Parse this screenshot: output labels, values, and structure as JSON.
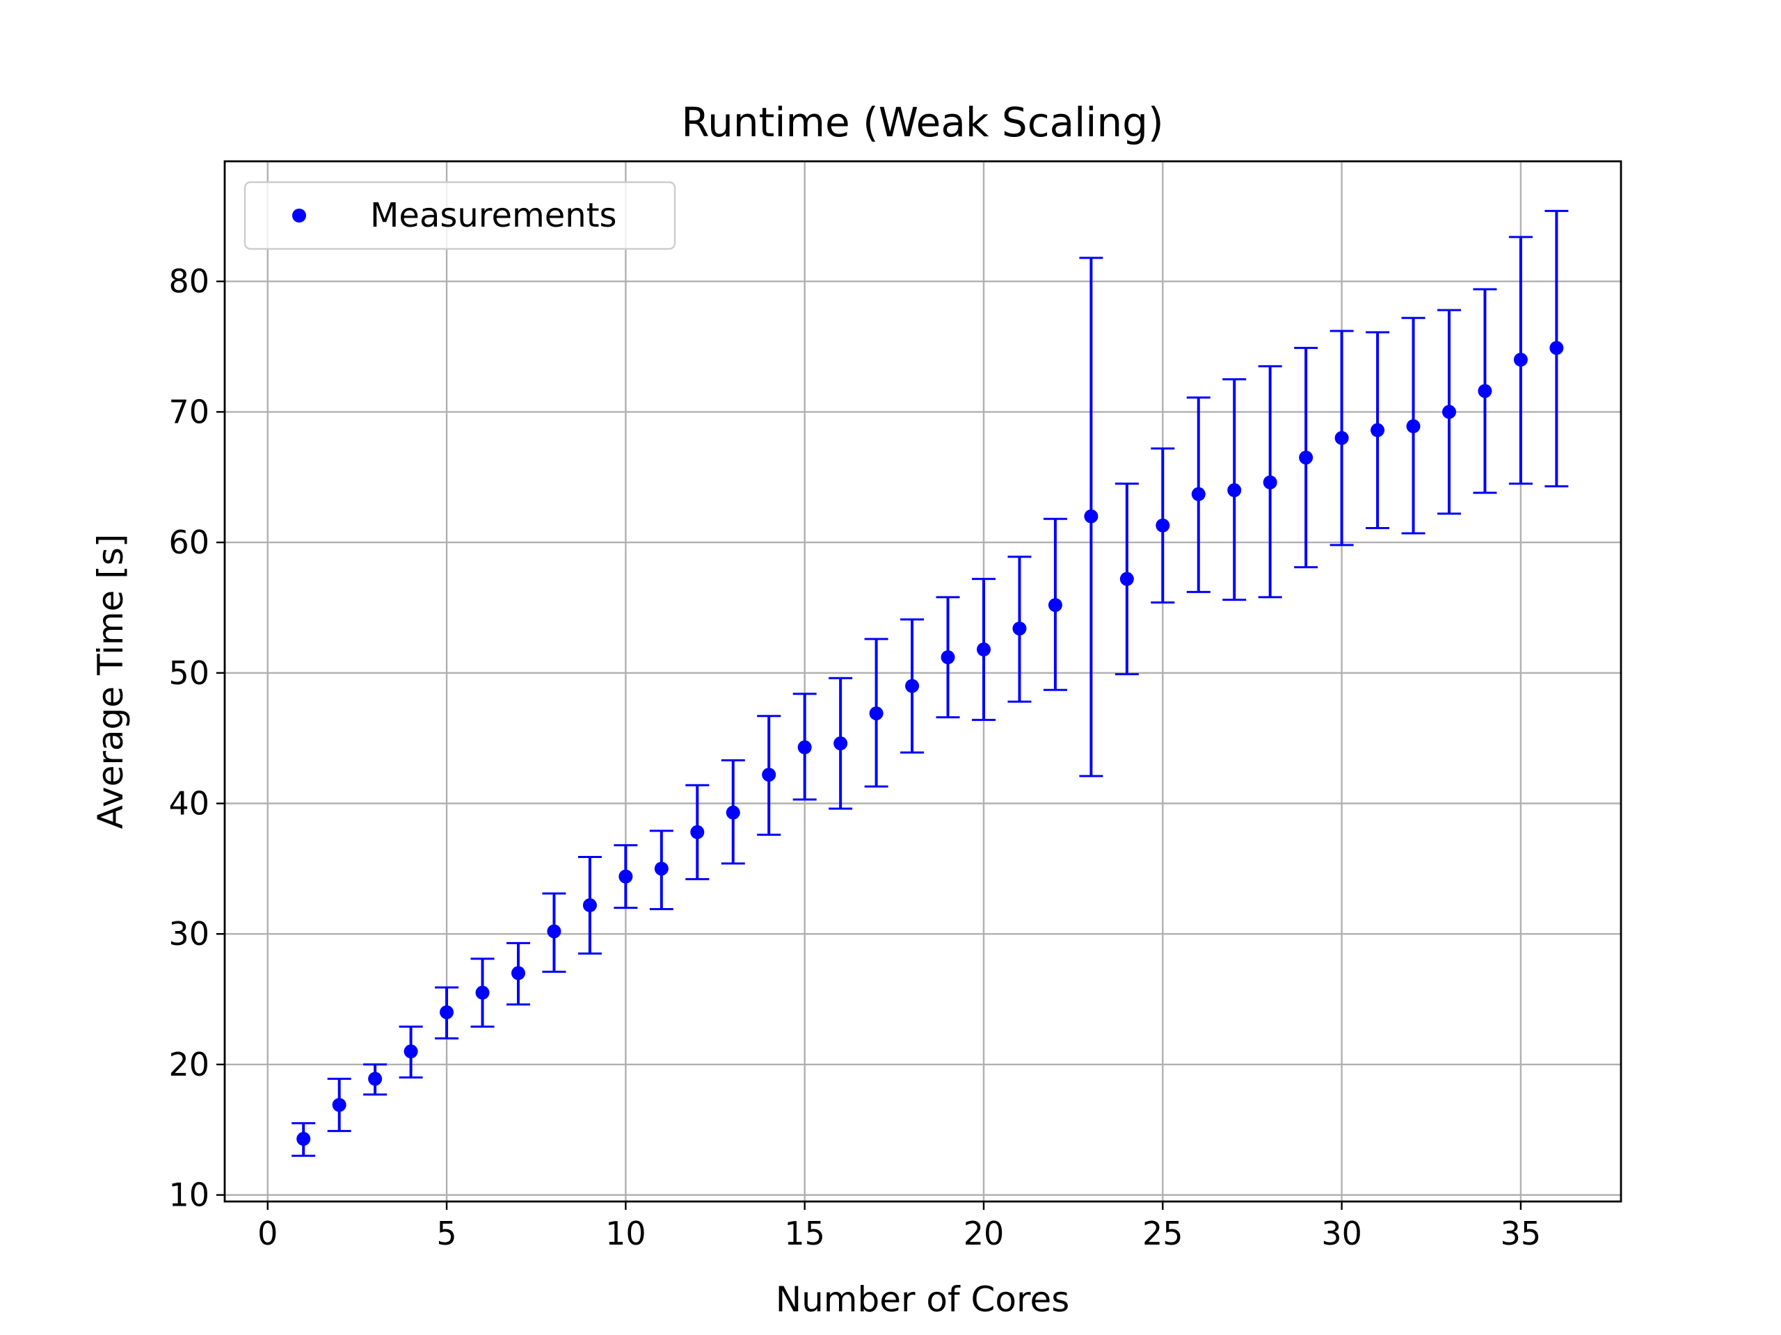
{
  "chart_data": {
    "type": "scatter",
    "title": "Runtime (Weak Scaling)",
    "xlabel": "Number of Cores",
    "ylabel": "Average Time [s]",
    "xlim": [
      -1.2,
      37.8
    ],
    "ylim": [
      9.5,
      89.2
    ],
    "xticks": [
      0,
      5,
      10,
      15,
      20,
      25,
      30,
      35
    ],
    "yticks": [
      10,
      20,
      30,
      40,
      50,
      60,
      70,
      80
    ],
    "grid": true,
    "legend": {
      "position": "upper-left",
      "entries": [
        "Measurements"
      ]
    },
    "color": "#0000ff",
    "series": [
      {
        "name": "Measurements",
        "x": [
          1,
          2,
          3,
          4,
          5,
          6,
          7,
          8,
          9,
          10,
          11,
          12,
          13,
          14,
          15,
          16,
          17,
          18,
          19,
          20,
          21,
          22,
          23,
          24,
          25,
          26,
          27,
          28,
          29,
          30,
          31,
          32,
          33,
          34,
          35,
          36
        ],
        "y": [
          14.3,
          16.9,
          18.9,
          21.0,
          24.0,
          25.5,
          27.0,
          30.2,
          32.2,
          34.4,
          35.0,
          37.8,
          39.3,
          42.2,
          44.3,
          44.6,
          46.9,
          49.0,
          51.2,
          51.8,
          53.4,
          55.2,
          62.0,
          57.2,
          61.3,
          63.7,
          64.0,
          64.6,
          66.5,
          68.0,
          68.6,
          68.9,
          70.0,
          71.6,
          74.0,
          74.9
        ],
        "y_low": [
          13.0,
          14.9,
          17.7,
          19.0,
          22.0,
          22.9,
          24.6,
          27.1,
          28.5,
          32.0,
          31.9,
          34.2,
          35.4,
          37.6,
          40.3,
          39.6,
          41.3,
          43.9,
          46.6,
          46.4,
          47.8,
          48.7,
          42.1,
          49.9,
          55.4,
          56.2,
          55.6,
          55.8,
          58.1,
          59.8,
          61.1,
          60.7,
          62.2,
          63.8,
          64.5,
          64.3
        ],
        "y_high": [
          15.5,
          18.9,
          20.0,
          22.9,
          25.9,
          28.1,
          29.3,
          33.1,
          35.9,
          36.8,
          37.9,
          41.4,
          43.3,
          46.7,
          48.4,
          49.6,
          52.6,
          54.1,
          55.8,
          57.2,
          58.9,
          61.8,
          81.8,
          64.5,
          67.2,
          71.1,
          72.5,
          73.5,
          74.9,
          76.2,
          76.1,
          77.2,
          77.8,
          79.4,
          83.4,
          85.4
        ]
      }
    ]
  }
}
